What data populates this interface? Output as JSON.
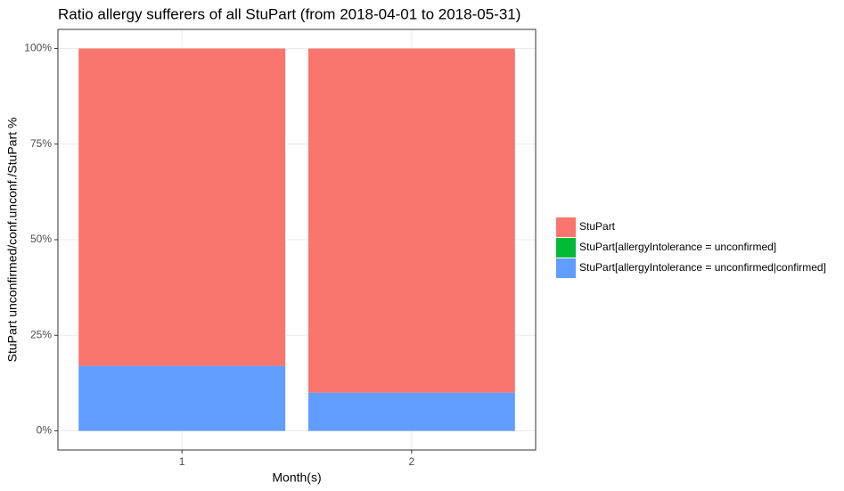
{
  "chart_data": {
    "type": "stacked_bar",
    "title": "Ratio allergy sufferers of all StuPart (from 2018-04-01 to 2018-05-31)",
    "x_label": "Month(s)",
    "y_label": "StuPart unconfirmed/conf.unconf./StuPart %",
    "categories": [
      "1",
      "2"
    ],
    "series": [
      {
        "name": "StuPart[allergyIntolerance = unconfirmed|confirmed]",
        "color": "#619cff",
        "values": [
          17,
          10
        ]
      },
      {
        "name": "StuPart[allergyIntolerance = unconfirmed]",
        "color": "#00ba38",
        "values": [
          0,
          0
        ]
      },
      {
        "name": "StuPart",
        "color": "#f8766d",
        "values": [
          83,
          90
        ]
      }
    ],
    "legend_order": [
      2,
      1,
      0
    ],
    "ylim": [
      -5,
      105
    ],
    "yticks": [
      {
        "value": 0,
        "label": "0%"
      },
      {
        "value": 25,
        "label": "25%"
      },
      {
        "value": 50,
        "label": "50%"
      },
      {
        "value": 75,
        "label": "75%"
      },
      {
        "value": 100,
        "label": "100%"
      }
    ],
    "grid": true,
    "legend_position": "right"
  }
}
